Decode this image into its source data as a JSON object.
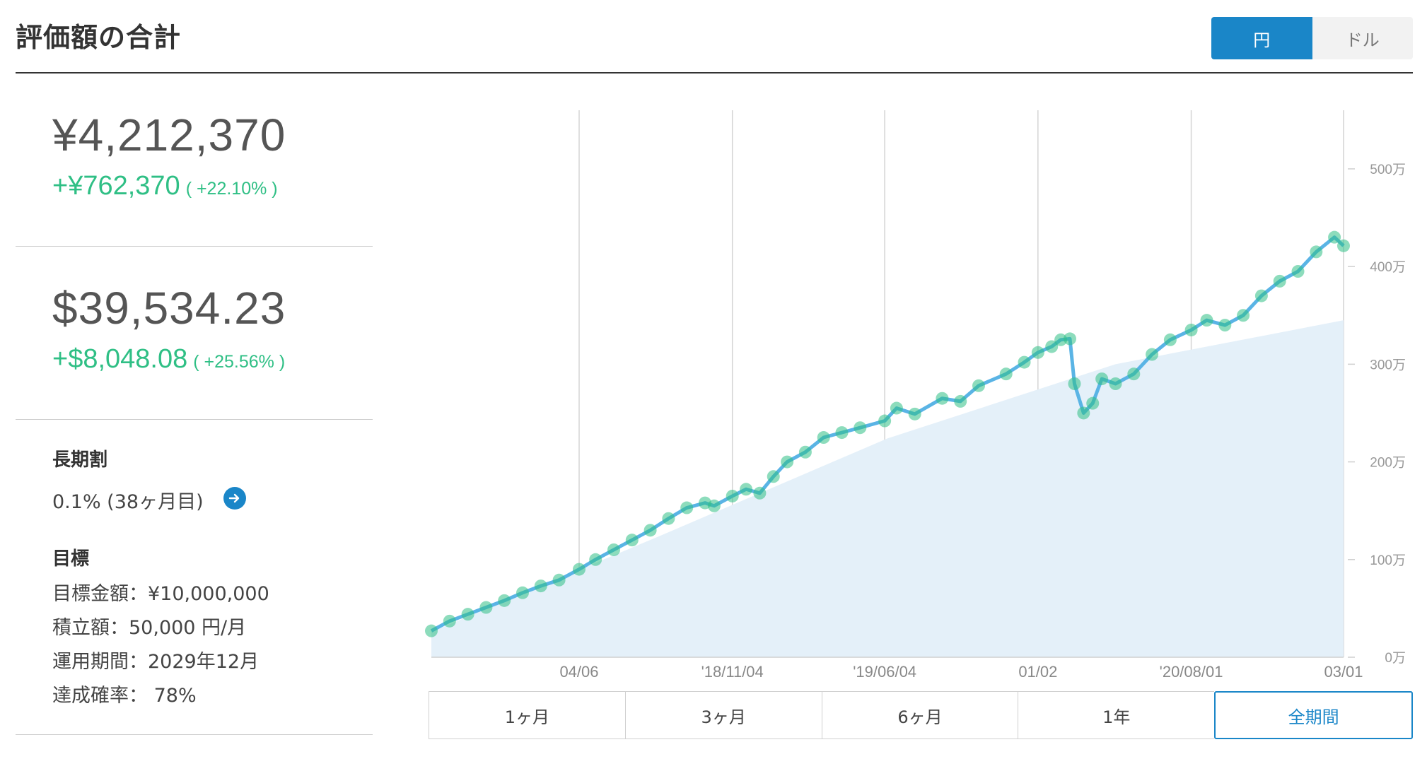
{
  "header": {
    "title": "評価額の合計"
  },
  "currency_toggle": {
    "options": [
      "円",
      "ドル"
    ],
    "selected": "円"
  },
  "summary": {
    "yen_total": "¥4,212,370",
    "yen_gain": "+¥762,370",
    "yen_gain_pct": "( +22.10% )",
    "usd_total": "$39,534.23",
    "usd_gain": "+$8,048.08",
    "usd_gain_pct": "( +25.56% )"
  },
  "discount": {
    "heading": "長期割",
    "value": "0.1% (38ヶ月目)"
  },
  "goal": {
    "heading": "目標",
    "target": "目標金額：¥10,000,000",
    "monthly": "積立額：50,000 円/月",
    "period": "運用期間：2029年12月",
    "probability": "達成確率： 78%"
  },
  "period_tabs": [
    "1ヶ月",
    "3ヶ月",
    "6ヶ月",
    "1年",
    "全期間"
  ],
  "active_period": "全期間",
  "colors": {
    "accent": "#1a86c8",
    "gain": "#2fbf85",
    "line": "#5ab4e5",
    "area": "#e4f0f9",
    "points": "#2fbf85"
  },
  "chart_data": {
    "type": "line",
    "x_tick_labels": [
      "04/06",
      "'18/11/04",
      "'19/06/04",
      "01/02",
      "'20/08/01",
      "03/01"
    ],
    "y_tick_labels": [
      "0万",
      "100万",
      "200万",
      "300万",
      "400万",
      "500万"
    ],
    "ylim": [
      0,
      5600000
    ],
    "x_range": [
      0,
      1000
    ],
    "x_tick_positions": [
      162,
      330,
      497,
      665,
      833,
      1000
    ],
    "series": [
      {
        "role": "valuation",
        "x": [
          0,
          20,
          40,
          60,
          80,
          100,
          120,
          140,
          162,
          180,
          200,
          220,
          240,
          260,
          280,
          300,
          310,
          330,
          345,
          360,
          375,
          390,
          410,
          430,
          450,
          470,
          497,
          510,
          530,
          560,
          580,
          600,
          630,
          650,
          665,
          680,
          690,
          700,
          705,
          715,
          725,
          735,
          750,
          770,
          790,
          810,
          833,
          850,
          870,
          890,
          910,
          930,
          950,
          970,
          990,
          1000
        ],
        "y": [
          270000,
          370000,
          440000,
          510000,
          580000,
          660000,
          730000,
          790000,
          900000,
          1000000,
          1100000,
          1200000,
          1300000,
          1420000,
          1530000,
          1580000,
          1550000,
          1650000,
          1720000,
          1680000,
          1850000,
          2000000,
          2100000,
          2250000,
          2300000,
          2350000,
          2420000,
          2550000,
          2490000,
          2650000,
          2620000,
          2780000,
          2900000,
          3020000,
          3120000,
          3180000,
          3250000,
          3260000,
          2800000,
          2500000,
          2600000,
          2850000,
          2800000,
          2900000,
          3100000,
          3250000,
          3350000,
          3450000,
          3400000,
          3500000,
          3700000,
          3850000,
          3950000,
          4150000,
          4300000,
          4212370
        ]
      },
      {
        "role": "contributions",
        "x": [
          0,
          250,
          500,
          750,
          1000
        ],
        "y": [
          260000,
          1240000,
          2240000,
          3000000,
          3450000
        ]
      }
    ]
  }
}
